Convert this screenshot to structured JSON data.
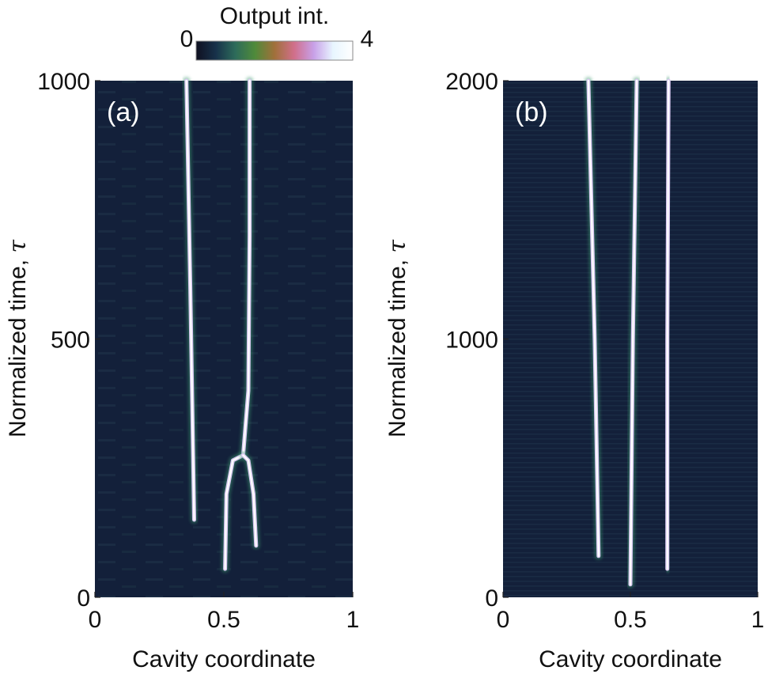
{
  "colorbar": {
    "title": "Output int.",
    "min_label": "0",
    "max_label": "4",
    "stops": [
      "#0f1020",
      "#17314a",
      "#2d6b5a",
      "#4f8a3a",
      "#a0703a",
      "#d06f8a",
      "#c8a0e8",
      "#e8f6ff",
      "#ffffff"
    ]
  },
  "chart_data": [
    {
      "type": "heatmap",
      "panel_label": "(a)",
      "xlabel": "Cavity coordinate",
      "ylabel": "Normalized time, ",
      "ylabel_symbol": "τ",
      "xlim": [
        0,
        1
      ],
      "ylim": [
        0,
        1000
      ],
      "xticks": [
        "0",
        "0.5",
        "1"
      ],
      "yticks": [
        "0",
        "500",
        "1000"
      ],
      "background_color": "#13203a",
      "traces": [
        {
          "points": [
            [
              0.385,
              150
            ],
            [
              0.37,
              600
            ],
            [
              0.355,
              1000
            ]
          ]
        },
        {
          "points": [
            [
              0.505,
              55
            ],
            [
              0.51,
              200
            ],
            [
              0.535,
              265
            ],
            [
              0.575,
              275
            ],
            [
              0.595,
              400
            ],
            [
              0.6,
              700
            ],
            [
              0.6,
              1000
            ]
          ]
        },
        {
          "points": [
            [
              0.625,
              100
            ],
            [
              0.615,
              200
            ],
            [
              0.595,
              265
            ],
            [
              0.575,
              275
            ]
          ]
        }
      ]
    },
    {
      "type": "heatmap",
      "panel_label": "(b)",
      "xlabel": "Cavity coordinate",
      "ylabel": "Normalized time, ",
      "ylabel_symbol": "τ",
      "xlim": [
        0,
        1
      ],
      "ylim": [
        0,
        2000
      ],
      "xticks": [
        "0",
        "0.5",
        "1"
      ],
      "yticks": [
        "0",
        "1000",
        "2000"
      ],
      "background_color": "#13203a",
      "traces": [
        {
          "points": [
            [
              0.375,
              160
            ],
            [
              0.36,
              1000
            ],
            [
              0.335,
              2000
            ]
          ]
        },
        {
          "points": [
            [
              0.5,
              50
            ],
            [
              0.51,
              1000
            ],
            [
              0.525,
              2000
            ]
          ]
        },
        {
          "points": [
            [
              0.645,
              110
            ],
            [
              0.645,
              1000
            ],
            [
              0.65,
              2000
            ]
          ]
        }
      ]
    }
  ]
}
